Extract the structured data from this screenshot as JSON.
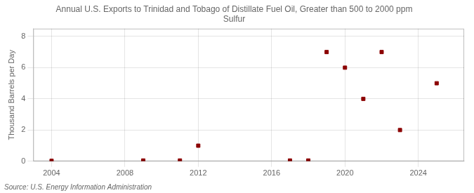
{
  "chart_data": {
    "type": "scatter",
    "title": "Annual U.S. Exports to Trinidad and Tobago of Distillate Fuel Oil, Greater than 500 to 2000 ppm\nSulfur",
    "ylabel": "Thousand Barrels per Day",
    "annotations": [
      "Source: U.S. Energy Information Administration"
    ],
    "x": [
      2004,
      2009,
      2011,
      2012,
      2017,
      2018,
      2019,
      2020,
      2021,
      2022,
      2023,
      2025
    ],
    "values": [
      0.03,
      0.05,
      0.05,
      1.0,
      0.05,
      0.05,
      7.0,
      6.0,
      4.0,
      7.0,
      2.0,
      5.0
    ],
    "color": "#8b0000",
    "marker": "square",
    "xlim": [
      2003,
      2026.5
    ],
    "xticks": [
      2004,
      2008,
      2012,
      2016,
      2020,
      2024
    ],
    "ylim": [
      0,
      8.5
    ],
    "yticks": [
      0,
      2,
      4,
      6,
      8
    ],
    "grid": true
  }
}
